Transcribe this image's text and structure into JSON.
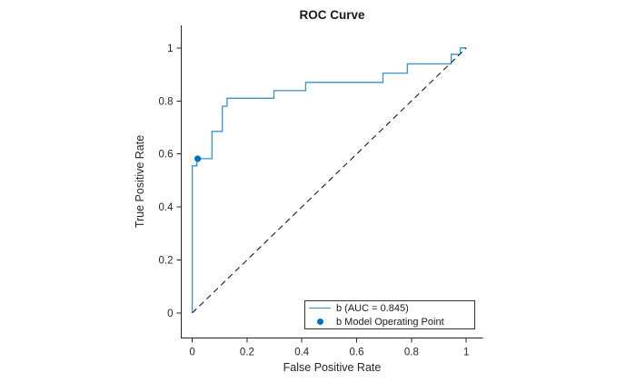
{
  "figure": {
    "background": "#ffffff"
  },
  "chart_data": {
    "type": "line",
    "title": "ROC Curve",
    "xlabel": "False Positive Rate",
    "ylabel": "True Positive Rate",
    "xlim": [
      -0.04,
      1.06
    ],
    "ylim": [
      -0.095,
      1.085
    ],
    "xticks": [
      0,
      0.2,
      0.4,
      0.6,
      0.8,
      1
    ],
    "xtick_labels": [
      "0",
      "0.2",
      "0.4",
      "0.6",
      "0.8",
      "1"
    ],
    "yticks": [
      0,
      0.2,
      0.4,
      0.6,
      0.8,
      1
    ],
    "ytick_labels": [
      "0",
      "0.2",
      "0.4",
      "0.6",
      "0.8",
      "1"
    ],
    "grid": false,
    "colors": {
      "series_blue": "#0072BD",
      "axis": "#262626",
      "reference": "#1a1a1a",
      "legend_border": "#333333"
    },
    "legend": {
      "position": "inside-bottom-right",
      "entries": [
        {
          "label": "b (AUC = 0.845)",
          "marker": "line",
          "color": "#0072BD"
        },
        {
          "label": "b Model Operating Point",
          "marker": "dot",
          "color": "#0072BD"
        }
      ]
    },
    "series": [
      {
        "name": "b ROC curve",
        "type": "step-line",
        "color": "#0072BD",
        "auc": 0.845,
        "points": [
          [
            0.0,
            0.0
          ],
          [
            0.0,
            0.555
          ],
          [
            0.017,
            0.555
          ],
          [
            0.017,
            0.582
          ],
          [
            0.072,
            0.582
          ],
          [
            0.072,
            0.685
          ],
          [
            0.11,
            0.685
          ],
          [
            0.11,
            0.78
          ],
          [
            0.127,
            0.78
          ],
          [
            0.127,
            0.81
          ],
          [
            0.298,
            0.81
          ],
          [
            0.298,
            0.839
          ],
          [
            0.414,
            0.839
          ],
          [
            0.414,
            0.87
          ],
          [
            0.696,
            0.87
          ],
          [
            0.696,
            0.905
          ],
          [
            0.785,
            0.905
          ],
          [
            0.785,
            0.94
          ],
          [
            0.945,
            0.94
          ],
          [
            0.945,
            0.976
          ],
          [
            0.978,
            0.976
          ],
          [
            0.978,
            1.0
          ],
          [
            1.0,
            1.0
          ]
        ]
      },
      {
        "name": "chance reference diagonal",
        "type": "dashed-line",
        "color": "#1a1a1a",
        "points": [
          [
            0.0,
            0.0
          ],
          [
            1.0,
            1.0
          ]
        ]
      },
      {
        "name": "b Model Operating Point",
        "type": "scatter",
        "color": "#0072BD",
        "points": [
          [
            0.02,
            0.582
          ]
        ]
      }
    ]
  }
}
